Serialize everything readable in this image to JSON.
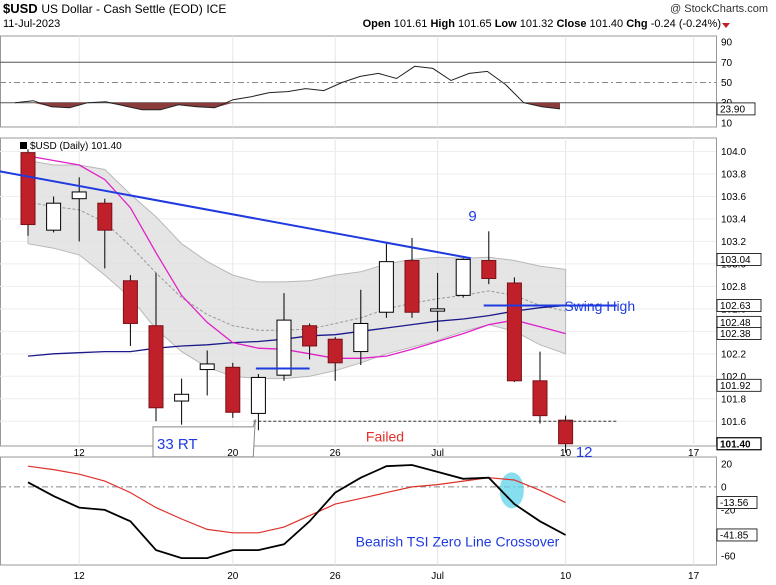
{
  "header": {
    "symbol": "$USD",
    "name": "US Dollar - Cash Settle (EOD)",
    "exchange": "ICE",
    "date": "11-Jul-2023",
    "brand": "@ StockCharts.com",
    "open_label": "Open",
    "open": "101.61",
    "high_label": "High",
    "high": "101.65",
    "low_label": "Low",
    "low": "101.32",
    "close_label": "Close",
    "close": "101.40",
    "chg_label": "Chg",
    "chg": "-0.24 (-0.24%)"
  },
  "chart_data": [
    {
      "type": "line",
      "panel": "top-indicator",
      "y_ticks": [
        10,
        30,
        50,
        70,
        90
      ],
      "levels": [
        30,
        50,
        70
      ],
      "ylim": [
        6,
        96
      ],
      "series": [
        {
          "values": [
            30,
            32,
            26,
            25,
            30,
            31,
            27,
            23,
            23,
            28,
            26,
            25,
            33,
            36,
            40,
            41,
            44,
            42,
            50,
            56,
            59,
            54,
            66,
            64,
            52,
            59,
            61,
            48,
            30,
            26,
            23.9
          ]
        }
      ],
      "end_value_label": "23.90"
    },
    {
      "type": "candlestick",
      "panel": "price",
      "legend": "$USD (Daily) 101.40",
      "y_ticks": [
        "101.6",
        "101.8",
        "102.0",
        "102.2",
        "102.4",
        "102.6",
        "102.8",
        "103.0",
        "103.2",
        "103.4",
        "103.6",
        "103.8",
        "104.0"
      ],
      "ylim": [
        101.38,
        104.12
      ],
      "x_ticks": [
        {
          "label": "12",
          "i": 2
        },
        {
          "label": "20",
          "i": 8
        },
        {
          "label": "26",
          "i": 12
        },
        {
          "label": "Jul",
          "i": 16
        },
        {
          "label": "10",
          "i": 21
        },
        {
          "label": "17",
          "i": 26
        }
      ],
      "candles": [
        {
          "i": 0,
          "o": 103.99,
          "h": 104.02,
          "l": 103.25,
          "c": 103.35
        },
        {
          "i": 1,
          "o": 103.3,
          "h": 103.6,
          "l": 103.28,
          "c": 103.54
        },
        {
          "i": 2,
          "o": 103.58,
          "h": 103.77,
          "l": 103.2,
          "c": 103.64
        },
        {
          "i": 3,
          "o": 103.54,
          "h": 103.58,
          "l": 102.96,
          "c": 103.3
        },
        {
          "i": 4,
          "o": 102.85,
          "h": 102.9,
          "l": 102.27,
          "c": 102.47
        },
        {
          "i": 5,
          "o": 102.45,
          "h": 102.92,
          "l": 101.6,
          "c": 101.72
        },
        {
          "i": 6,
          "o": 101.78,
          "h": 101.98,
          "l": 101.57,
          "c": 101.84
        },
        {
          "i": 7,
          "o": 102.06,
          "h": 102.23,
          "l": 101.83,
          "c": 102.11
        },
        {
          "i": 8,
          "o": 102.08,
          "h": 102.12,
          "l": 101.63,
          "c": 101.68
        },
        {
          "i": 9,
          "o": 101.67,
          "h": 102.02,
          "l": 101.52,
          "c": 101.99
        },
        {
          "i": 10,
          "o": 102.01,
          "h": 102.74,
          "l": 101.96,
          "c": 102.5
        },
        {
          "i": 11,
          "o": 102.45,
          "h": 102.47,
          "l": 102.15,
          "c": 102.27
        },
        {
          "i": 12,
          "o": 102.33,
          "h": 102.35,
          "l": 101.96,
          "c": 102.12
        },
        {
          "i": 13,
          "o": 102.22,
          "h": 102.77,
          "l": 102.1,
          "c": 102.47
        },
        {
          "i": 14,
          "o": 102.57,
          "h": 103.18,
          "l": 102.52,
          "c": 103.02
        },
        {
          "i": 15,
          "o": 103.03,
          "h": 103.23,
          "l": 102.52,
          "c": 102.57
        },
        {
          "i": 16,
          "o": 102.58,
          "h": 102.92,
          "l": 102.4,
          "c": 102.6
        },
        {
          "i": 17,
          "o": 102.72,
          "h": 103.05,
          "l": 102.7,
          "c": 103.04
        },
        {
          "i": 18,
          "o": 103.03,
          "h": 103.29,
          "l": 102.82,
          "c": 102.87
        },
        {
          "i": 19,
          "o": 102.83,
          "h": 102.88,
          "l": 101.95,
          "c": 101.96
        },
        {
          "i": 20,
          "o": 101.96,
          "h": 102.22,
          "l": 101.58,
          "c": 101.65
        },
        {
          "i": 21,
          "o": 101.61,
          "h": 101.65,
          "l": 101.32,
          "c": 101.4
        }
      ],
      "band_upper": [
        103.92,
        103.88,
        103.88,
        103.84,
        103.62,
        103.42,
        103.18,
        103.02,
        102.9,
        102.84,
        102.84,
        102.85,
        102.9,
        102.93,
        103.0,
        103.04,
        103.06,
        103.05,
        103.06,
        103.03,
        102.98,
        102.95
      ],
      "band_lower": [
        103.18,
        103.14,
        103.08,
        102.9,
        102.7,
        102.42,
        102.22,
        102.08,
        102.0,
        101.98,
        101.98,
        102.0,
        102.05,
        102.12,
        102.2,
        102.26,
        102.32,
        102.4,
        102.46,
        102.4,
        102.28,
        102.2
      ],
      "band_middle": [
        103.55,
        103.51,
        103.48,
        103.37,
        103.16,
        102.92,
        102.7,
        102.55,
        102.45,
        102.41,
        102.41,
        102.42,
        102.47,
        102.52,
        102.6,
        102.65,
        102.69,
        102.72,
        102.76,
        102.72,
        102.63,
        102.58
      ],
      "ema_fast": [
        103.96,
        103.92,
        103.88,
        103.75,
        103.5,
        103.1,
        102.72,
        102.48,
        102.3,
        102.25,
        102.24,
        102.2,
        102.16,
        102.16,
        102.18,
        102.24,
        102.31,
        102.38,
        102.46,
        102.5,
        102.44,
        102.38
      ],
      "sma_slow": [
        102.18,
        102.2,
        102.21,
        102.22,
        102.22,
        102.25,
        102.27,
        102.28,
        102.3,
        102.31,
        102.33,
        102.36,
        102.37,
        102.4,
        102.43,
        102.46,
        102.49,
        102.51,
        102.54,
        102.58,
        102.61,
        102.63
      ],
      "price_tags": [
        {
          "value": 103.04,
          "label": "103.04"
        },
        {
          "value": 102.63,
          "label": "102.63"
        },
        {
          "value": 102.48,
          "label": "102.48"
        },
        {
          "value": 102.38,
          "label": "102.38"
        },
        {
          "value": 101.92,
          "label": "101.92"
        },
        {
          "value": 101.4,
          "label": "101.40"
        }
      ],
      "annotations": {
        "nine": "9",
        "swing_high": "Swing High",
        "failed": "Failed",
        "rt": "33 RT",
        "twelve": "12"
      },
      "trendline": {
        "from": {
          "i": -1.5,
          "v": 103.84
        },
        "to": {
          "i": 17.3,
          "v": 103.05
        }
      },
      "swing_high_line": {
        "from_i": 17.8,
        "to_i": 23.0,
        "v": 102.63
      },
      "failed_level": {
        "from_i": 8.8,
        "to_i": 23.0,
        "v": 101.6
      },
      "support_level": {
        "from_i": 8.9,
        "to_i": 11.0,
        "v": 102.07
      }
    },
    {
      "type": "line",
      "panel": "tsi",
      "y_ticks": [
        -60,
        -40,
        -20,
        0,
        20
      ],
      "ylim": [
        -68,
        26
      ],
      "zero_line": true,
      "series": [
        {
          "values": [
            4,
            -8,
            -18,
            -20,
            -30,
            -55,
            -62,
            -62,
            -55,
            -55,
            -50,
            -30,
            -5,
            8,
            18,
            19,
            13,
            7,
            8,
            -15,
            -30,
            -41.85
          ]
        },
        {
          "values": [
            18,
            15,
            11,
            5,
            -5,
            -18,
            -28,
            -37,
            -40,
            -40,
            -35,
            -25,
            -15,
            -10,
            -5,
            0,
            2,
            5,
            8,
            6,
            -3,
            -13.56
          ]
        }
      ],
      "tags": [
        {
          "value": -13.56,
          "label": "-13.56"
        },
        {
          "value": -41.85,
          "label": "-41.85"
        }
      ],
      "annotation": "Bearish TSI Zero Line Crossover"
    }
  ],
  "colors": {
    "up_body": "#ffffff",
    "down_body": "#c0202a",
    "wick": "#000000",
    "band": "#dcdcdc",
    "ema": "#e020c8",
    "sma": "#1a1a8a",
    "trend": "#1f3be0",
    "tsi_line": "#000000",
    "tsi_signal": "#e0302a",
    "rsi_fill": "#8a3c3c",
    "annot_blue": "#1f3be0",
    "annot_red": "#e0302a",
    "highlight": "#5fd3e8"
  }
}
